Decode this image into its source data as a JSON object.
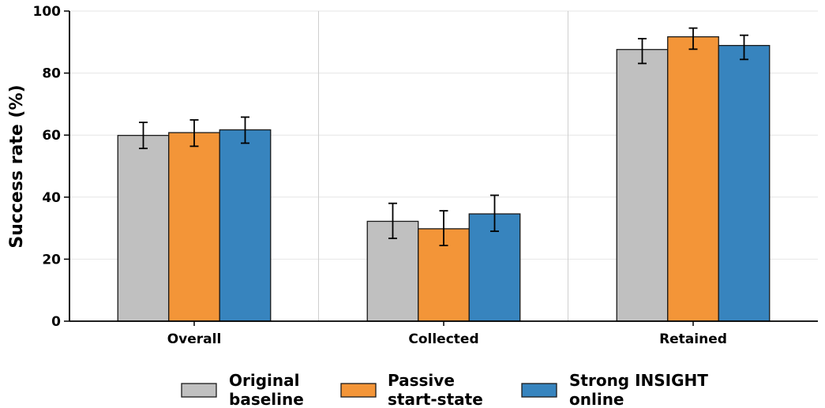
{
  "chart_data": {
    "type": "bar",
    "ylabel": "Success rate (%)",
    "ylim": [
      0,
      100
    ],
    "yticks": [
      "0",
      "20",
      "40",
      "60",
      "80",
      "100"
    ],
    "grid": true,
    "legend_position": "bottom",
    "categories": [
      "Overall",
      "Collected",
      "Retained"
    ],
    "series": [
      {
        "name_lines": [
          "Original",
          "baseline"
        ],
        "color": "#c0c0c0",
        "values": [
          59.9,
          32.2,
          87.6
        ],
        "err_low": [
          55.7,
          26.7,
          83.1
        ],
        "err_high": [
          64.1,
          38.0,
          91.1
        ]
      },
      {
        "name_lines": [
          "Passive",
          "start-state"
        ],
        "color": "#f39538",
        "values": [
          60.8,
          29.8,
          91.7
        ],
        "err_low": [
          56.4,
          24.4,
          87.7
        ],
        "err_high": [
          64.9,
          35.6,
          94.5
        ]
      },
      {
        "name_lines": [
          "Strong INSIGHT",
          "online"
        ],
        "color": "#3784be",
        "values": [
          61.7,
          34.6,
          88.9
        ],
        "err_low": [
          57.4,
          29.0,
          84.4
        ],
        "err_high": [
          65.8,
          40.6,
          92.2
        ]
      }
    ]
  }
}
